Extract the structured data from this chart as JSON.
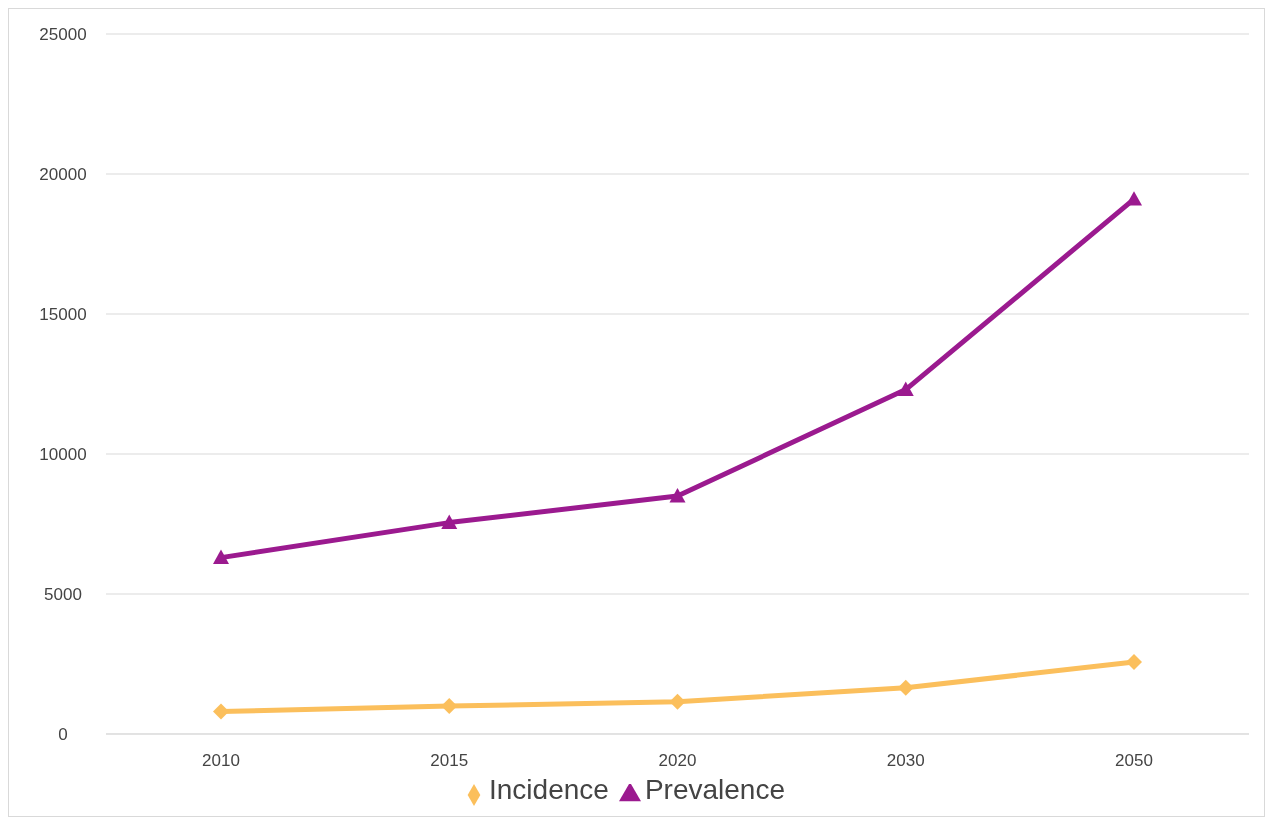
{
  "chart_data": {
    "type": "line",
    "categories": [
      "2010",
      "2015",
      "2020",
      "2030",
      "2050"
    ],
    "series": [
      {
        "name": "Incidence",
        "color": "#fbbf5c",
        "marker": "diamond",
        "values": [
          800,
          1000,
          1150,
          1650,
          2570
        ]
      },
      {
        "name": "Prevalence",
        "color": "#9b1a8f",
        "marker": "triangle",
        "values": [
          6300,
          7550,
          8500,
          12300,
          19100
        ]
      }
    ],
    "ylim": [
      0,
      25000
    ],
    "yticks": [
      0,
      5000,
      10000,
      15000,
      20000,
      25000
    ],
    "grid": "y",
    "legend": "bottom"
  }
}
